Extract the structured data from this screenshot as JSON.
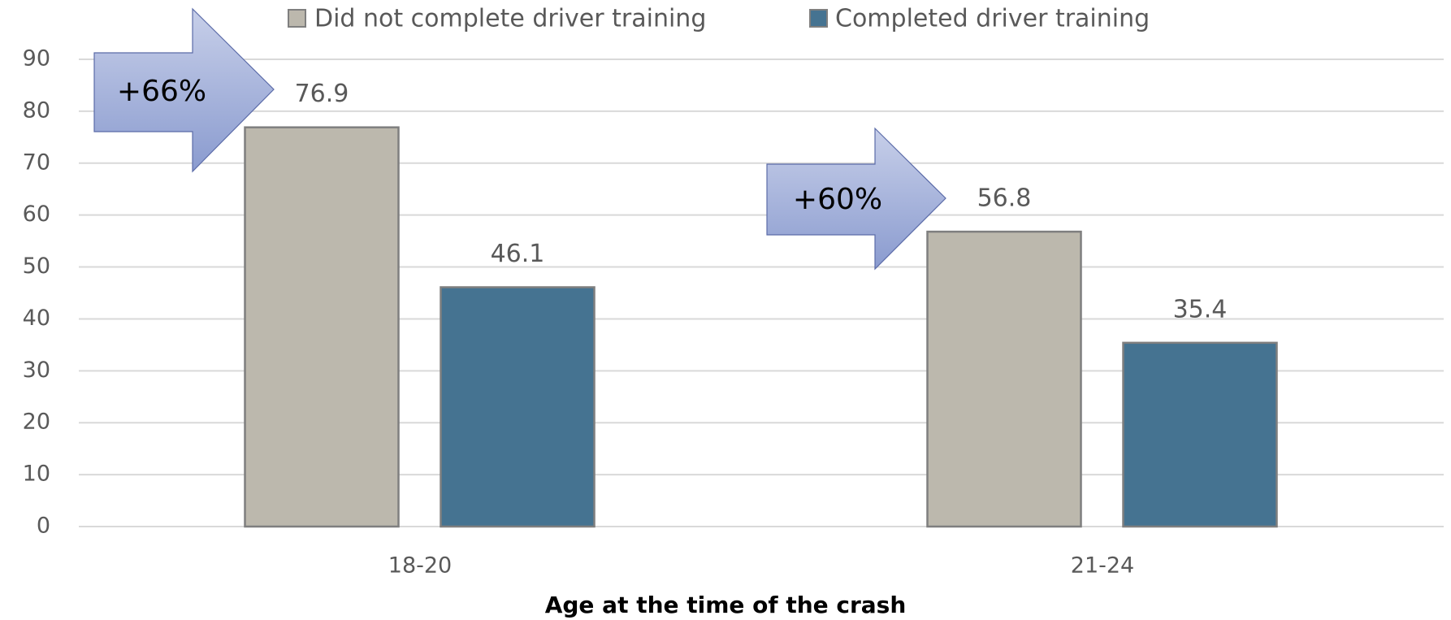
{
  "chart_data": {
    "type": "bar",
    "categories": [
      "18-20",
      "21-24"
    ],
    "series": [
      {
        "name": "Did not complete driver training",
        "color": "#bcb8ad",
        "values": [
          76.9,
          56.8
        ]
      },
      {
        "name": "Completed driver training",
        "color": "#457391",
        "values": [
          46.1,
          35.4
        ]
      }
    ],
    "ylim": [
      0,
      90
    ],
    "yticks": [
      0,
      10,
      20,
      30,
      40,
      50,
      60,
      70,
      80,
      90
    ],
    "grid": true,
    "legend": "top",
    "xlabel": "Age at the time of the crash",
    "annotations": [
      "+66%",
      "+60%"
    ]
  }
}
